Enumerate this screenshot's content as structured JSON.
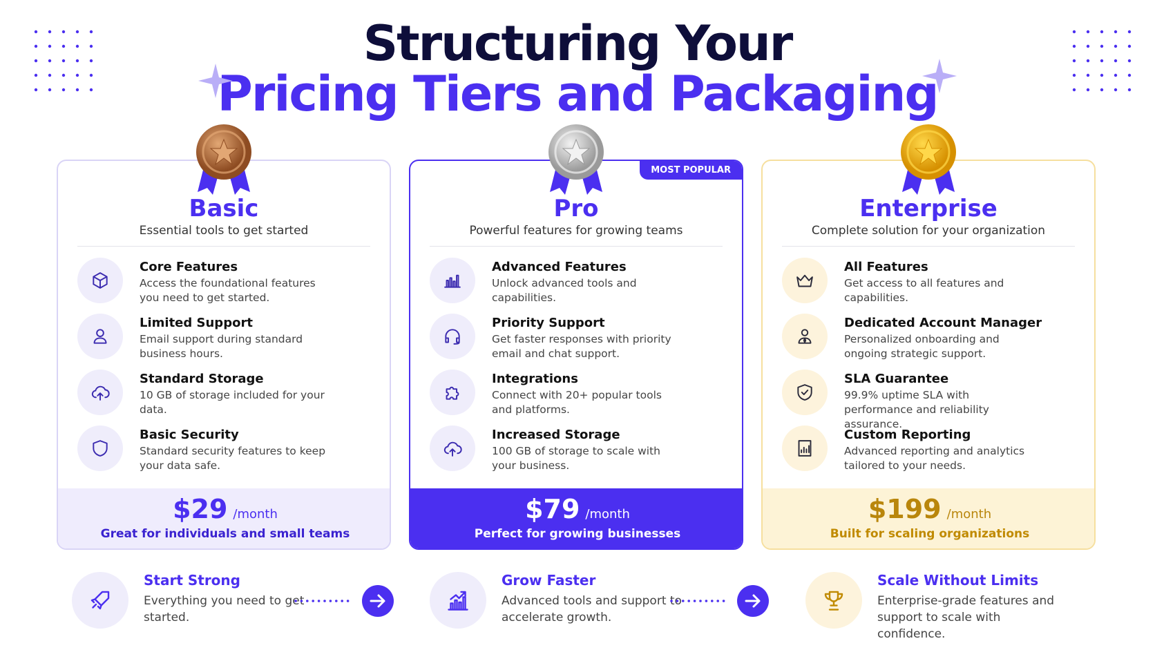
{
  "header": {
    "title_line1": "Structuring Your",
    "title_line2": "Pricing Tiers and Packaging"
  },
  "tiers": [
    {
      "name": "Basic",
      "subtitle": "Essential tools to get started",
      "features": [
        {
          "title": "Core Features",
          "description": "Access the foundational features you need to get started."
        },
        {
          "title": "Limited Support",
          "description": "Email support during standard business hours."
        },
        {
          "title": "Standard Storage",
          "description": "10 GB of storage included for your data."
        },
        {
          "title": "Basic Security",
          "description": "Standard security features to keep your data safe."
        }
      ],
      "price": "$29",
      "period": "/month",
      "tagline": "Great for individuals and small teams"
    },
    {
      "name": "Pro",
      "badge": "MOST POPULAR",
      "subtitle": "Powerful features for growing teams",
      "features": [
        {
          "title": "Advanced Features",
          "description": "Unlock advanced tools and capabilities."
        },
        {
          "title": "Priority Support",
          "description": "Get faster responses with priority email and chat support."
        },
        {
          "title": "Integrations",
          "description": "Connect with 20+ popular tools and platforms."
        },
        {
          "title": "Increased Storage",
          "description": "100 GB of storage to scale with your business."
        }
      ],
      "price": "$79",
      "period": "/month",
      "tagline": "Perfect for growing businesses"
    },
    {
      "name": "Enterprise",
      "subtitle": "Complete solution for your organization",
      "features": [
        {
          "title": "All Features",
          "description": "Get access to all features and capabilities."
        },
        {
          "title": "Dedicated Account Manager",
          "description": "Personalized onboarding and ongoing strategic support."
        },
        {
          "title": "SLA Guarantee",
          "description": "99.9% uptime SLA with performance and reliability assurance."
        },
        {
          "title": "Custom Reporting",
          "description": "Advanced reporting and analytics tailored to your needs."
        }
      ],
      "price": "$199",
      "period": "/month",
      "tagline": "Built for scaling organizations"
    }
  ],
  "journey": [
    {
      "title": "Start Strong",
      "description": "Everything you need to get started."
    },
    {
      "title": "Grow Faster",
      "description": "Advanced tools and support to accelerate growth."
    },
    {
      "title": "Scale Without Limits",
      "description": "Enterprise-grade features and support to scale with confidence."
    }
  ]
}
